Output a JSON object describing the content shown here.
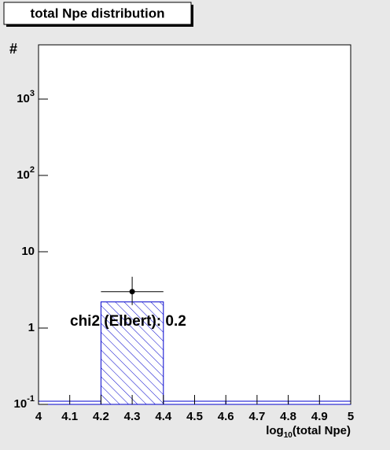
{
  "chart_data": {
    "type": "histogram",
    "title": "total Npe distribution",
    "y_label": "#",
    "x_label": {
      "main": "log",
      "sub": "10",
      "rest": "(total Npe)"
    },
    "bins": [
      4.0,
      4.2,
      4.4,
      4.6,
      4.8,
      5.0
    ],
    "counts": [
      0,
      2.2,
      0,
      0,
      0
    ],
    "color": "#0000cc",
    "points": {
      "x": [
        4.3
      ],
      "y": [
        3.0
      ],
      "xerr": [
        0.1
      ],
      "yerr_low": [
        1.0
      ],
      "yerr_high": [
        1.7
      ],
      "color": "#000000"
    },
    "annotation": "chi2 (Elbert): 0.2",
    "xlim": [
      4,
      5
    ],
    "xticks": [
      4,
      4.1,
      4.2,
      4.3,
      4.4,
      4.5,
      4.6,
      4.7,
      4.8,
      4.9,
      5
    ],
    "ylim": [
      0.1,
      5140
    ],
    "y_log": true,
    "yticks": [
      {
        "value": 0.1,
        "label": "10",
        "sup": "-1"
      },
      1,
      10,
      {
        "value": 100,
        "label": "10",
        "sup": "2"
      },
      {
        "value": 1000,
        "label": "10",
        "sup": "3"
      }
    ]
  }
}
